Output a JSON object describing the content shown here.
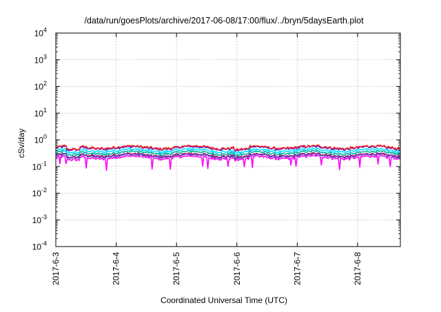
{
  "chart_data": {
    "type": "line",
    "title": "/data/run/goesPlots/archive/2017-06-08/17:00/flux/../bryn/5daysEarth.plot",
    "xlabel": "Coordinated Universal Time (UTC)",
    "ylabel": "cSv/day",
    "y_scale": "log",
    "ylim": [
      0.0001,
      10000
    ],
    "y_ticks": [
      {
        "value": 0.0001,
        "base": "10",
        "exp": "-4"
      },
      {
        "value": 0.001,
        "base": "10",
        "exp": "-3"
      },
      {
        "value": 0.01,
        "base": "10",
        "exp": "-2"
      },
      {
        "value": 0.1,
        "base": "10",
        "exp": "-1"
      },
      {
        "value": 1,
        "base": "10",
        "exp": "0"
      },
      {
        "value": 10,
        "base": "10",
        "exp": "1"
      },
      {
        "value": 100,
        "base": "10",
        "exp": "2"
      },
      {
        "value": 1000,
        "base": "10",
        "exp": "3"
      },
      {
        "value": 10000,
        "base": "10",
        "exp": "4"
      }
    ],
    "xlim": [
      "2017-06-03 00:00",
      "2017-06-08 17:00"
    ],
    "x_ticks": [
      "2017-6-3",
      "2017-6-4",
      "2017-6-5",
      "2017-6-6",
      "2017-6-7",
      "2017-6-8"
    ],
    "x_tick_values": [
      "2017-06-03",
      "2017-06-04",
      "2017-06-05",
      "2017-06-06",
      "2017-06-07",
      "2017-06-08"
    ],
    "grid": true,
    "series": [
      {
        "color": "#ff00ff",
        "base": 0.22,
        "dips": true
      },
      {
        "color": "#bbbbbb",
        "base": 0.25
      },
      {
        "color": "#c01030",
        "base": 0.27
      },
      {
        "color": "#7030c0",
        "base": 0.26
      },
      {
        "color": "#00b0a0",
        "base": 0.33
      },
      {
        "color": "#00e0ff",
        "base": 0.4
      },
      {
        "color": "#2020ff",
        "base": 0.5
      },
      {
        "color": "#ff2020",
        "base": 0.53
      }
    ]
  }
}
